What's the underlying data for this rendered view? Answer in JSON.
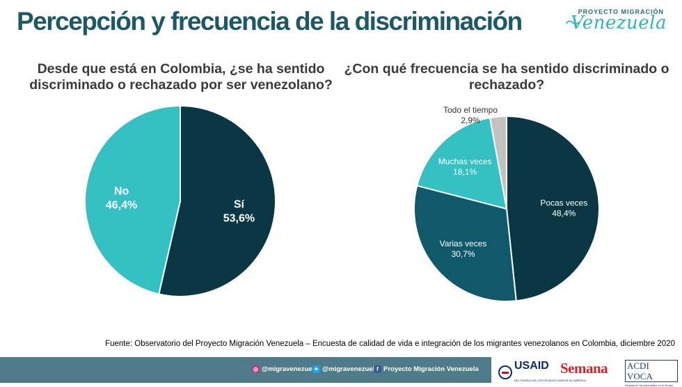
{
  "title": "Percepción y frecuencia de la discriminación",
  "logo": {
    "top_text": "PROYECTO MIGRACIÓN",
    "main_text": "Venezuela"
  },
  "colors": {
    "title": "#1d5866",
    "dark_teal": "#0b3745",
    "mid_teal": "#10596a",
    "light_teal": "#35c0c4",
    "gray": "#c2c2c2",
    "footer": "#4f7b88"
  },
  "chart_data": [
    {
      "type": "pie",
      "title": "Desde que está en Colombia, ¿se ha sentido discriminado o rechazado por ser venezolano?",
      "slices": [
        {
          "label": "Sí",
          "value": 53.6,
          "display": "53,6%",
          "color": "#0b3745"
        },
        {
          "label": "No",
          "value": 46.4,
          "display": "46,4%",
          "color": "#35c0c4"
        }
      ]
    },
    {
      "type": "pie",
      "title": "¿Con qué frecuencia se ha sentido discriminado o rechazado?",
      "slices": [
        {
          "label": "Pocas veces",
          "value": 48.4,
          "display": "48,4%",
          "color": "#0b3745"
        },
        {
          "label": "Varias veces",
          "value": 30.7,
          "display": "30,7%",
          "color": "#10596a"
        },
        {
          "label": "Muchas veces",
          "value": 18.1,
          "display": "18,1%",
          "color": "#35c0c4"
        },
        {
          "label": "Todo el tiempo",
          "value": 2.9,
          "display": "2,9%",
          "color": "#c2c2c2"
        }
      ]
    }
  ],
  "source": "Fuente: Observatorio del Proyecto Migración Venezuela – Encuesta de calidad de vida e integración de los migrantes venezolanos en Colombia, diciembre 2020",
  "footer": {
    "instagram": "@migravenezuela",
    "twitter": "@migravenezuela",
    "facebook": "Proyecto Migración Venezuela",
    "instagram_icon": "instagram-icon",
    "twitter_icon": "twitter-icon",
    "facebook_icon": "facebook-icon"
  },
  "sponsors": {
    "usaid": "USAID",
    "usaid_sub": "DEL PUEBLO DE LOS ESTADOS UNIDOS DE AMÉRICA",
    "semana": "Semana",
    "acdi": "ACDI VOCA",
    "acdi_tag": "Ampliando Oportunidades en el Mundo"
  }
}
